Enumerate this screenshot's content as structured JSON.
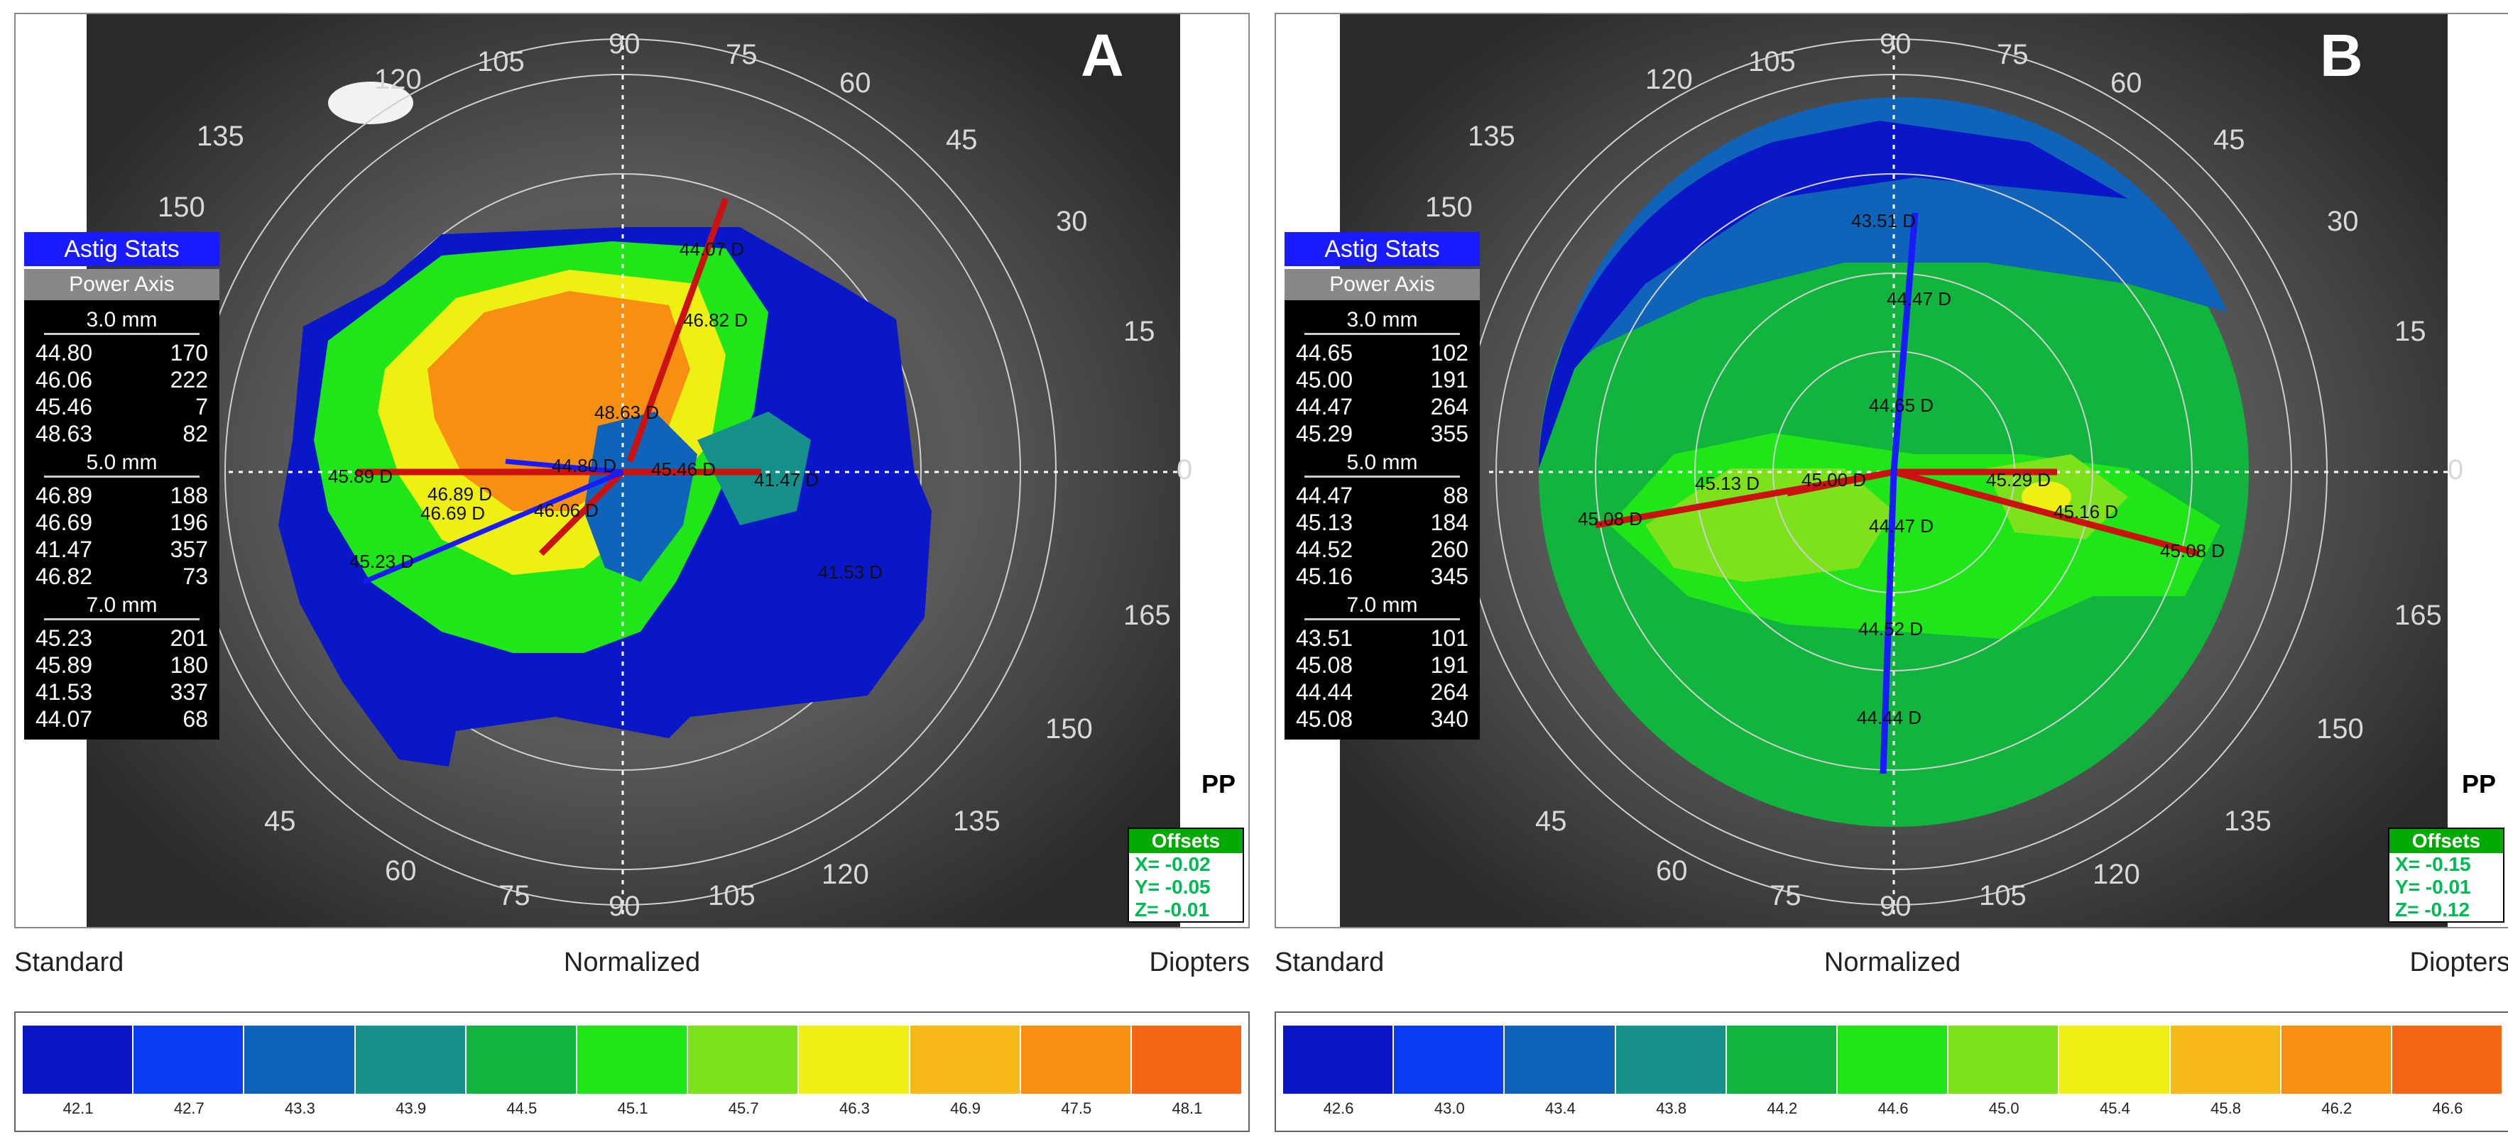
{
  "panels": [
    {
      "letter": "A",
      "stats_title": "Astig Stats",
      "stats_header": "Power  Axis",
      "groups": [
        {
          "mm": "3.0 mm",
          "rows": [
            [
              "44.80",
              "170"
            ],
            [
              "46.06",
              "222"
            ],
            [
              "45.46",
              "7"
            ],
            [
              "48.63",
              "82"
            ]
          ]
        },
        {
          "mm": "5.0 mm",
          "rows": [
            [
              "46.89",
              "188"
            ],
            [
              "46.69",
              "196"
            ],
            [
              "41.47",
              "357"
            ],
            [
              "46.82",
              "73"
            ]
          ]
        },
        {
          "mm": "7.0 mm",
          "rows": [
            [
              "45.23",
              "201"
            ],
            [
              "45.89",
              "180"
            ],
            [
              "41.53",
              "337"
            ],
            [
              "44.07",
              "68"
            ]
          ]
        }
      ],
      "map_labels": [
        "44.07 D",
        "46.82 D",
        "48.63 D",
        "45.89 D",
        "44.80 D",
        "45.46 D",
        "41.47 D",
        "46.89 D",
        "46.69 D",
        "46.06 D",
        "45.23 D",
        "41.53 D"
      ],
      "pp": "PP",
      "offsets": {
        "title": "Offsets",
        "x": "X= -0.02",
        "y": "Y= -0.05",
        "z": "Z= -0.01"
      },
      "scale": {
        "left": "Standard",
        "middle": "Normalized",
        "right": "Diopters",
        "ticks": [
          "42.1",
          "42.7",
          "43.3",
          "43.9",
          "44.5",
          "45.1",
          "45.7",
          "46.3",
          "46.9",
          "47.5",
          "48.1"
        ],
        "colors": [
          "#0a17c8",
          "#0a3cf5",
          "#0f63b8",
          "#16908a",
          "#11b43c",
          "#1ee619",
          "#7de21c",
          "#eef012",
          "#f7b81a",
          "#f79011",
          "#f56614"
        ]
      },
      "degree_labels": [
        "90",
        "75",
        "60",
        "45",
        "30",
        "15",
        "0",
        "165",
        "150",
        "135",
        "120",
        "105",
        "90",
        "75",
        "60",
        "45",
        "150",
        "135",
        "120",
        "105"
      ],
      "map_colors": {
        "outer": "#0a17c8",
        "mid": "#1ee619",
        "warm": "#f79011",
        "yellow": "#eef012"
      }
    },
    {
      "letter": "B",
      "stats_title": "Astig Stats",
      "stats_header": "Power  Axis",
      "groups": [
        {
          "mm": "3.0 mm",
          "rows": [
            [
              "44.65",
              "102"
            ],
            [
              "45.00",
              "191"
            ],
            [
              "44.47",
              "264"
            ],
            [
              "45.29",
              "355"
            ]
          ]
        },
        {
          "mm": "5.0 mm",
          "rows": [
            [
              "44.47",
              "88"
            ],
            [
              "45.13",
              "184"
            ],
            [
              "44.52",
              "260"
            ],
            [
              "45.16",
              "345"
            ]
          ]
        },
        {
          "mm": "7.0 mm",
          "rows": [
            [
              "43.51",
              "101"
            ],
            [
              "45.08",
              "191"
            ],
            [
              "44.44",
              "264"
            ],
            [
              "45.08",
              "340"
            ]
          ]
        }
      ],
      "map_labels": [
        "43.51 D",
        "44.47 D",
        "44.65 D",
        "45.13 D",
        "45.00 D",
        "45.29 D",
        "45.08 D",
        "44.47 D",
        "45.16 D",
        "45.08 D",
        "44.52 D",
        "44.44 D"
      ],
      "pp": "PP",
      "offsets": {
        "title": "Offsets",
        "x": "X= -0.15",
        "y": "Y= -0.01",
        "z": "Z= -0.12"
      },
      "scale": {
        "left": "Standard",
        "middle": "Normalized",
        "right": "Diopters",
        "ticks": [
          "42.6",
          "43.0",
          "43.4",
          "43.8",
          "44.2",
          "44.6",
          "45.0",
          "45.4",
          "45.8",
          "46.2",
          "46.6"
        ],
        "colors": [
          "#0a17c8",
          "#0a3cf5",
          "#0f63b8",
          "#16908a",
          "#11b43c",
          "#1ee619",
          "#7de21c",
          "#eef012",
          "#f7b81a",
          "#f79011",
          "#f56614"
        ]
      },
      "degree_labels": [
        "90",
        "75",
        "60",
        "45",
        "30",
        "15",
        "0",
        "165",
        "150",
        "135",
        "120",
        "105",
        "90",
        "75",
        "60",
        "45",
        "150",
        "135",
        "120",
        "105"
      ],
      "map_colors": {
        "outer": "#0a17c8",
        "mid": "#1ee619",
        "warm": "#f79011",
        "yellow": "#eef012"
      }
    }
  ]
}
